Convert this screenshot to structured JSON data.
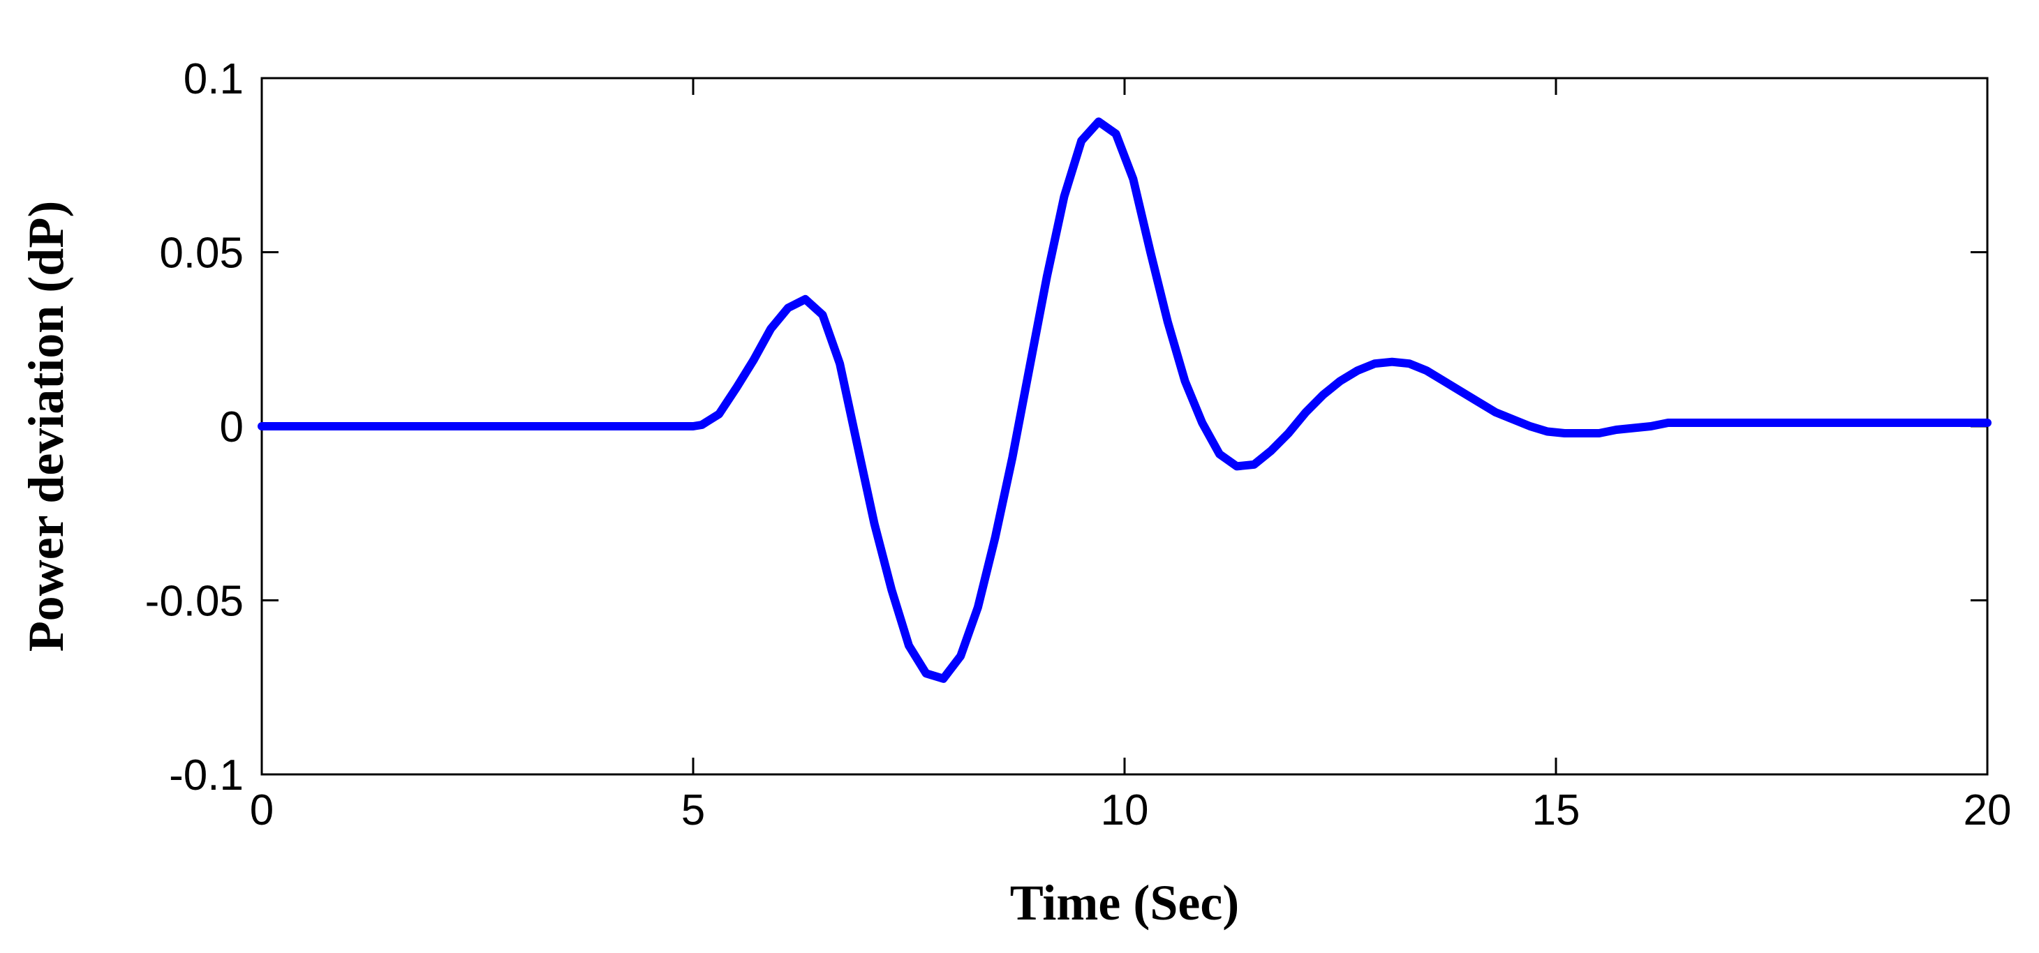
{
  "chart_data": {
    "type": "line",
    "title": "",
    "xlabel": "Time (Sec)",
    "ylabel": "Power deviation (dP)",
    "xlim": [
      0,
      20
    ],
    "ylim": [
      -0.1,
      0.1
    ],
    "x_ticks": [
      0,
      5,
      10,
      15,
      20
    ],
    "x_tick_labels": [
      "0",
      "5",
      "10",
      "15",
      "20"
    ],
    "y_ticks": [
      -0.1,
      -0.05,
      0,
      0.05,
      0.1
    ],
    "y_tick_labels": [
      "-0.1",
      "-0.05",
      "0",
      "0.05",
      "0.1"
    ],
    "grid": false,
    "legend": "none",
    "series": [
      {
        "color": "#0000ff",
        "x": [
          0,
          5.0,
          5.1,
          5.3,
          5.5,
          5.7,
          5.9,
          6.1,
          6.3,
          6.5,
          6.7,
          6.9,
          7.1,
          7.3,
          7.5,
          7.7,
          7.9,
          8.1,
          8.3,
          8.5,
          8.7,
          8.9,
          9.1,
          9.3,
          9.5,
          9.7,
          9.9,
          10.1,
          10.3,
          10.5,
          10.7,
          10.9,
          11.1,
          11.3,
          11.5,
          11.7,
          11.9,
          12.1,
          12.3,
          12.5,
          12.7,
          12.9,
          13.1,
          13.3,
          13.5,
          13.7,
          13.9,
          14.1,
          14.3,
          14.5,
          14.7,
          14.9,
          15.1,
          15.3,
          15.5,
          15.7,
          15.9,
          16.1,
          16.3,
          16.5,
          16.7,
          17.0,
          17.5,
          18.0,
          18.5,
          19.0,
          19.5,
          20.0
        ],
        "y": [
          0,
          0,
          0.0004,
          0.0035,
          0.011,
          0.019,
          0.028,
          0.034,
          0.0365,
          0.032,
          0.018,
          -0.005,
          -0.028,
          -0.047,
          -0.063,
          -0.071,
          -0.0725,
          -0.066,
          -0.052,
          -0.032,
          -0.009,
          0.017,
          0.043,
          0.066,
          0.082,
          0.0875,
          0.084,
          0.071,
          0.05,
          0.03,
          0.013,
          0.001,
          -0.008,
          -0.0115,
          -0.011,
          -0.007,
          -0.002,
          0.004,
          0.009,
          0.013,
          0.016,
          0.018,
          0.0185,
          0.018,
          0.016,
          0.013,
          0.01,
          0.007,
          0.004,
          0.002,
          0,
          -0.0015,
          -0.002,
          -0.002,
          -0.002,
          -0.001,
          -0.0005,
          0,
          0.001,
          0.001,
          0.001,
          0.001,
          0.001,
          0.001,
          0.001,
          0.001,
          0.001,
          0.001
        ]
      }
    ]
  }
}
